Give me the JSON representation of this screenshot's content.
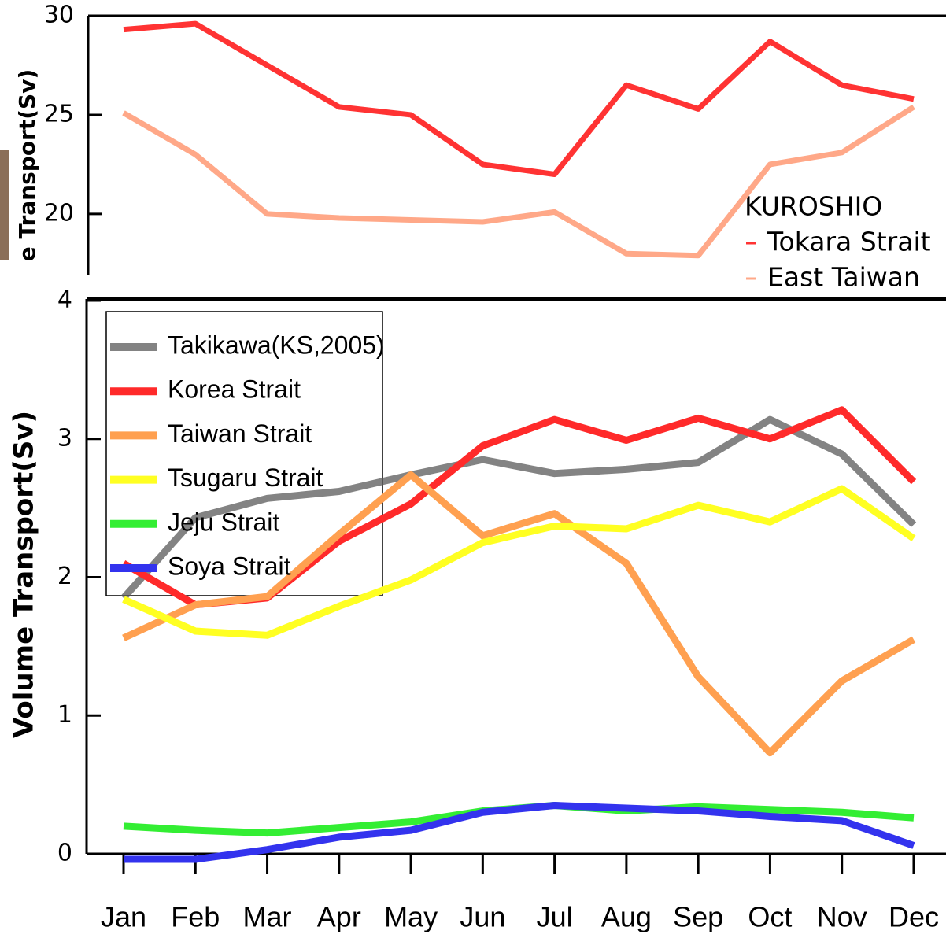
{
  "chart_data": [
    {
      "type": "line",
      "y_label": "e Transport(Sv)",
      "legend_title": "KUROSHIO",
      "ylim": [
        16.9,
        30
      ],
      "yticks": [
        20,
        25,
        30
      ],
      "series": [
        {
          "name": "Tokara Strait",
          "color": "#ff3333",
          "values": [
            29.3,
            29.6,
            27.5,
            25.4,
            25.0,
            22.5,
            22.0,
            26.5,
            25.3,
            28.7,
            26.5,
            25.8
          ]
        },
        {
          "name": "East Taiwan",
          "color": "#ffa888",
          "values": [
            25.1,
            23.0,
            20.0,
            19.8,
            19.7,
            19.6,
            20.1,
            18.0,
            17.9,
            22.5,
            23.1,
            25.4
          ]
        }
      ]
    },
    {
      "type": "line",
      "y_label": "Volume Transport(Sv)",
      "categories": [
        "Jan",
        "Feb",
        "Mar",
        "Apr",
        "May",
        "Jun",
        "Jul",
        "Aug",
        "Sep",
        "Oct",
        "Nov",
        "Dec"
      ],
      "ylim": [
        0,
        4
      ],
      "yticks": [
        0,
        1,
        2,
        3,
        4
      ],
      "series": [
        {
          "name": "Takikawa(KS,2005)",
          "color": "#5a5a5a",
          "opacity": 0.75,
          "values": [
            1.85,
            2.43,
            2.57,
            2.62,
            2.74,
            2.85,
            2.75,
            2.78,
            2.83,
            3.14,
            2.89,
            2.38
          ]
        },
        {
          "name": "Korea Strait",
          "color": "#ff2a2a",
          "values": [
            2.1,
            1.8,
            1.85,
            2.26,
            2.53,
            2.95,
            3.14,
            2.99,
            3.15,
            3.0,
            3.21,
            2.69
          ]
        },
        {
          "name": "Taiwan Strait",
          "color": "#ffa050",
          "values": [
            1.56,
            1.8,
            1.86,
            2.31,
            2.74,
            2.3,
            2.46,
            2.1,
            1.28,
            0.73,
            1.25,
            1.55
          ]
        },
        {
          "name": "Tsugaru Strait",
          "color": "#ffff22",
          "values": [
            1.84,
            1.61,
            1.58,
            1.79,
            1.98,
            2.25,
            2.37,
            2.35,
            2.52,
            2.4,
            2.64,
            2.28
          ]
        },
        {
          "name": "Jeju Strait",
          "color": "#33ee33",
          "values": [
            0.2,
            0.17,
            0.15,
            0.19,
            0.23,
            0.31,
            0.35,
            0.31,
            0.34,
            0.32,
            0.3,
            0.26
          ]
        },
        {
          "name": "Soya Strait",
          "color": "#3333ee",
          "values": [
            -0.04,
            -0.04,
            0.03,
            0.12,
            0.17,
            0.3,
            0.35,
            0.33,
            0.31,
            0.27,
            0.24,
            0.06
          ]
        }
      ]
    }
  ]
}
